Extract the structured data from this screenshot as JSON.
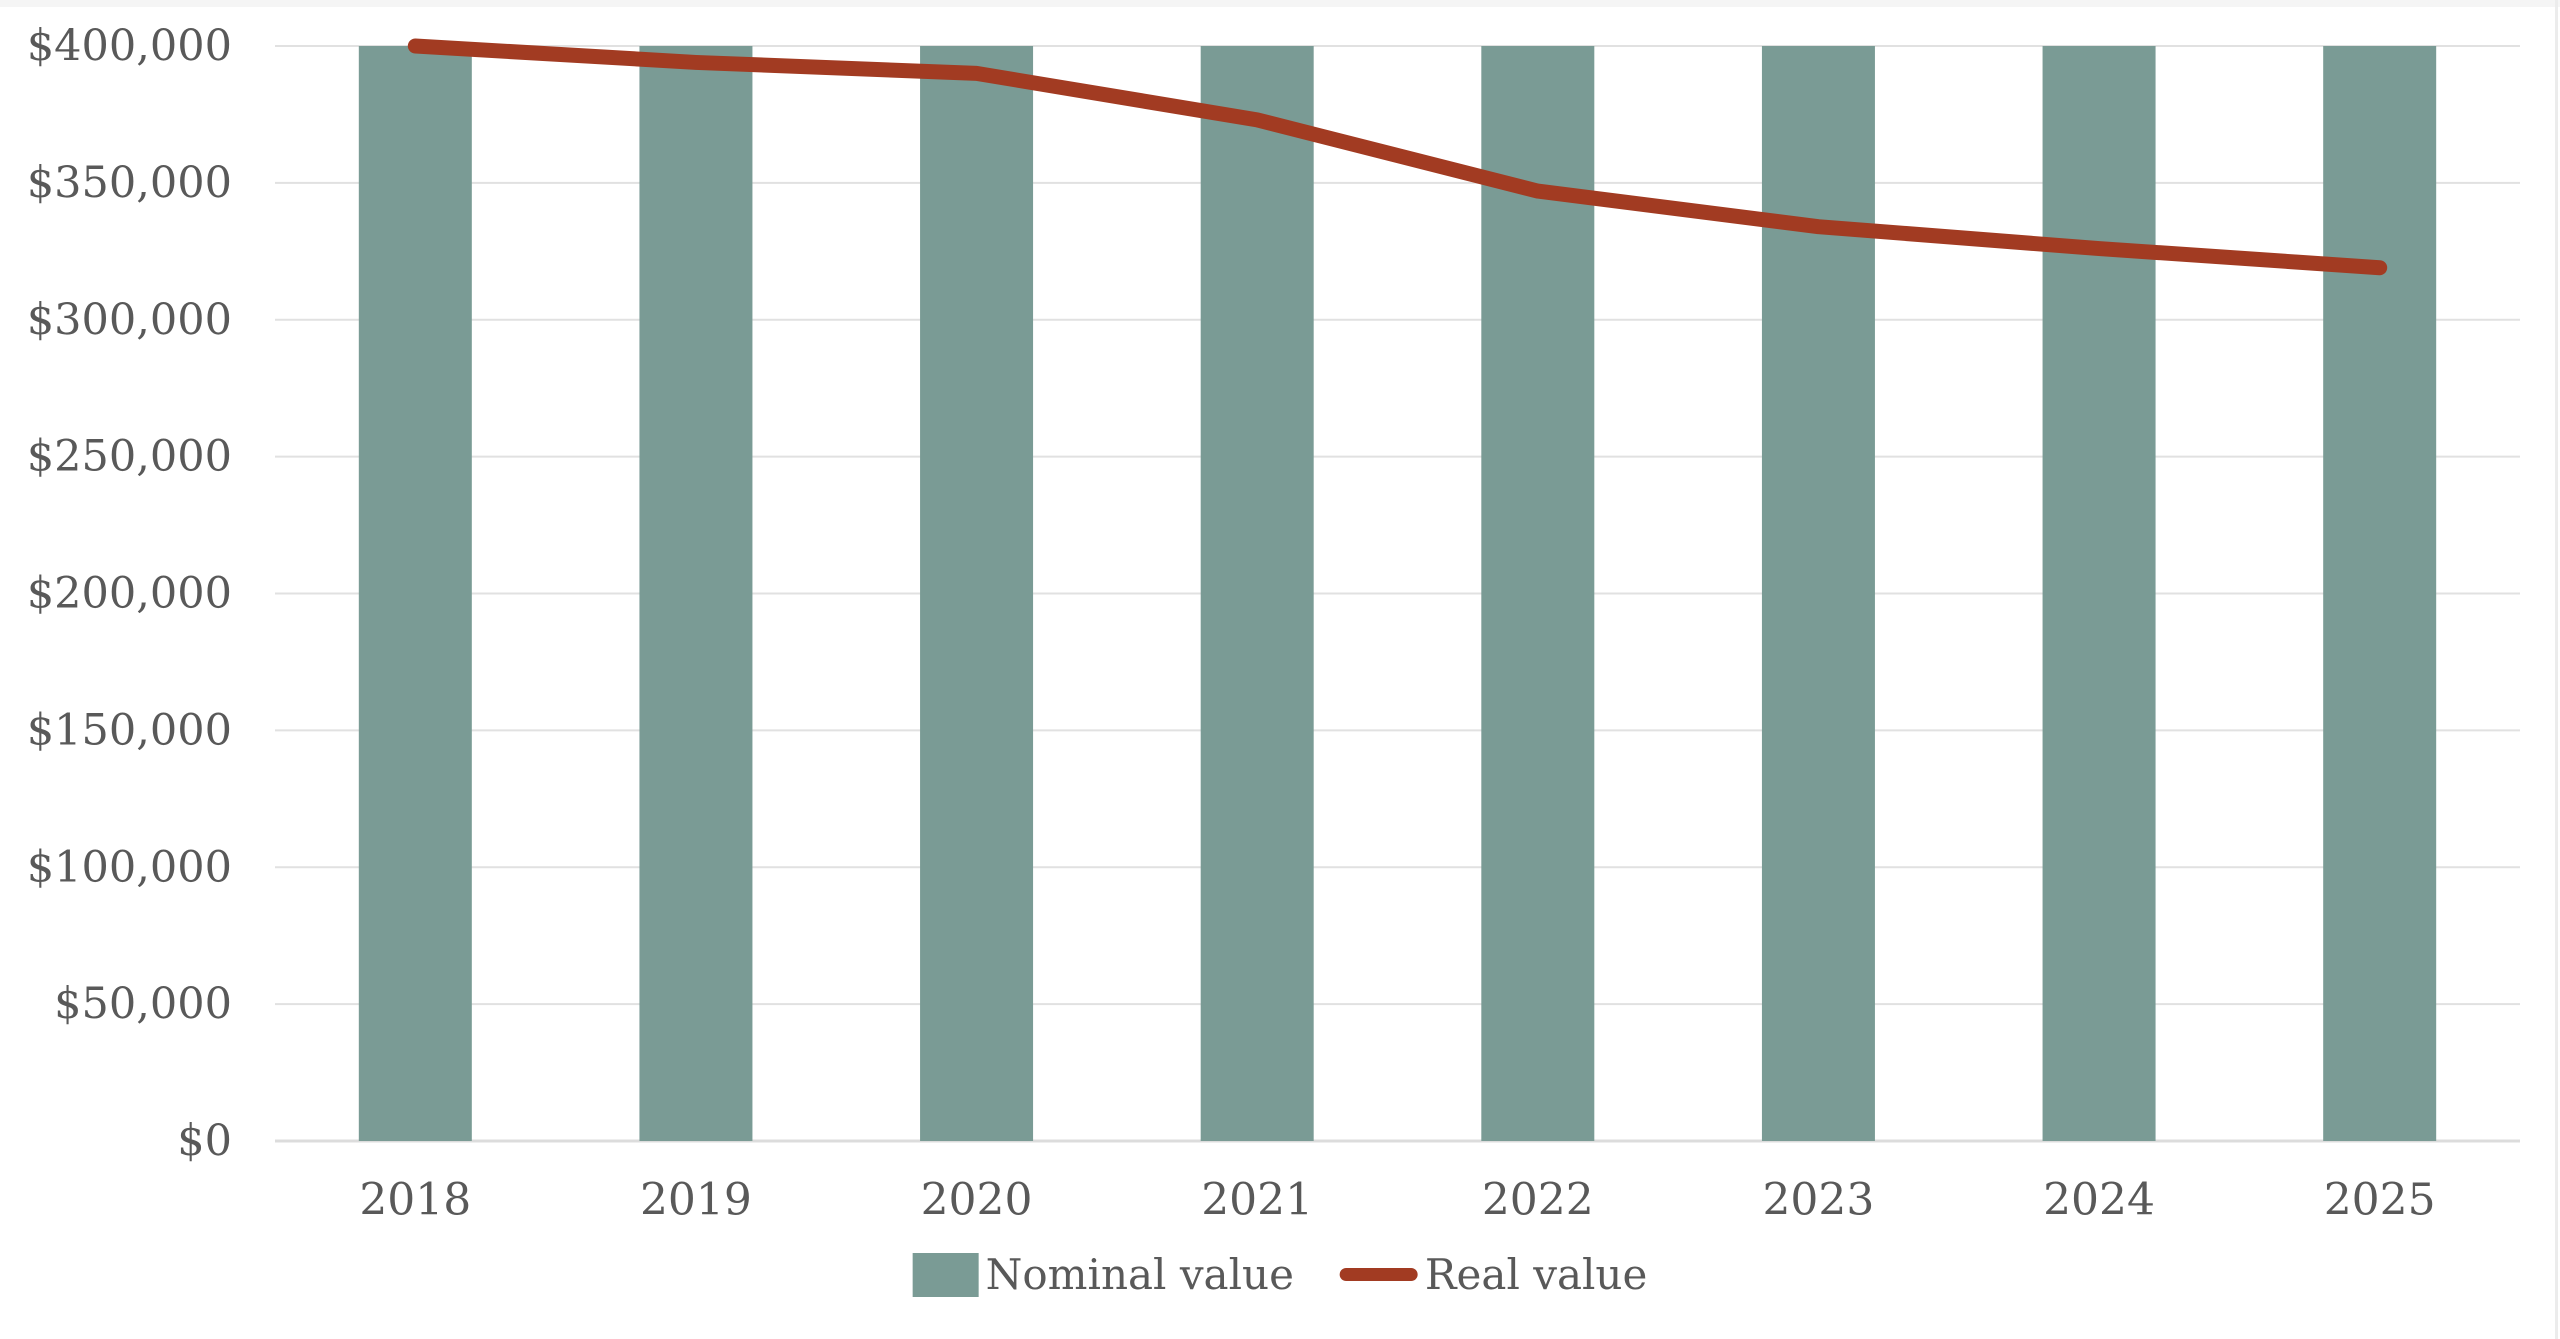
{
  "chart_data": {
    "type": "bar",
    "subtype": "bar-with-line-overlay",
    "title": "",
    "xlabel": "",
    "ylabel": "",
    "categories": [
      "2018",
      "2019",
      "2020",
      "2021",
      "2022",
      "2023",
      "2024",
      "2025"
    ],
    "series": [
      {
        "name": "Nominal value",
        "type": "bar",
        "color": "#7A9B95",
        "values": [
          400000,
          400000,
          400000,
          400000,
          400000,
          400000,
          400000,
          400000
        ]
      },
      {
        "name": "Real value",
        "type": "line",
        "color": "#A23B22",
        "values": [
          400000,
          394000,
          390000,
          373000,
          347000,
          334000,
          326000,
          319000
        ]
      }
    ],
    "y_axis": {
      "min": 0,
      "max": 400000,
      "tick_step": 50000,
      "tick_labels": [
        "$400,000",
        "$350,000",
        "$300,000",
        "$250,000",
        "$200,000",
        "$150,000",
        "$100,000",
        "$50,000",
        "$0"
      ]
    },
    "x_axis": {
      "tick_labels": [
        "2018",
        "2019",
        "2020",
        "2021",
        "2022",
        "2023",
        "2024",
        "2025"
      ]
    },
    "grid": true,
    "legend_position": "bottom"
  },
  "legend": {
    "items": [
      {
        "label": "Nominal value",
        "swatch": "rect",
        "color": "#7A9B95"
      },
      {
        "label": "Real value",
        "swatch": "line",
        "color": "#A23B22"
      }
    ]
  },
  "colors": {
    "bar": "#7A9B95",
    "line": "#A23B22",
    "axis_text": "#595959",
    "gridline": "#E1E1E1",
    "baseline": "#DCDCDC",
    "background": "#FFFFFF"
  }
}
